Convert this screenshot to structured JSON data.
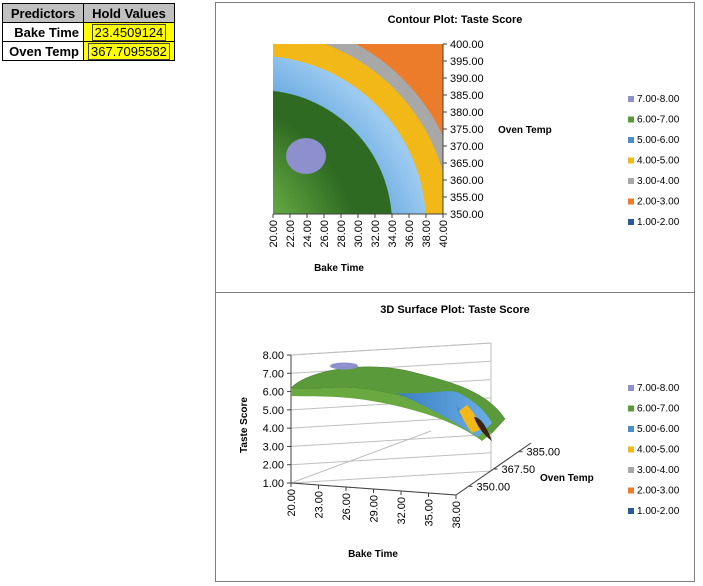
{
  "predictors_table": {
    "header": [
      "Predictors",
      "Hold Values"
    ],
    "rows": [
      {
        "label": "Bake Time",
        "value": "23.4509124"
      },
      {
        "label": "Oven Temp",
        "value": "367.7095582"
      }
    ]
  },
  "legend": {
    "entries": [
      {
        "label": "7.00-8.00",
        "color": "#8e8fcd"
      },
      {
        "label": "6.00-7.00",
        "color": "#5a9a3a"
      },
      {
        "label": "5.00-6.00",
        "color": "#4c8dc8"
      },
      {
        "label": "4.00-5.00",
        "color": "#f2b818"
      },
      {
        "label": "3.00-4.00",
        "color": "#a8a8a8"
      },
      {
        "label": "2.00-3.00",
        "color": "#ec7b2a"
      },
      {
        "label": "1.00-2.00",
        "color": "#2b5a9a"
      }
    ]
  },
  "chart_data": [
    {
      "type": "heatmap",
      "title": "Contour Plot: Taste Score",
      "xlabel": "Bake Time",
      "ylabel": "Oven Temp",
      "x_ticks": [
        "20.00",
        "22.00",
        "24.00",
        "26.00",
        "28.00",
        "30.00",
        "32.00",
        "34.00",
        "36.00",
        "38.00",
        "40.00"
      ],
      "y_ticks": [
        "350.00",
        "355.00",
        "360.00",
        "365.00",
        "370.00",
        "375.00",
        "380.00",
        "385.00",
        "390.00",
        "395.00",
        "400.00"
      ],
      "xlim": [
        20,
        40
      ],
      "ylim": [
        350,
        400
      ],
      "peak": {
        "x": 23.45,
        "y": 367.71,
        "z": 7.2
      },
      "legend_position": "right"
    },
    {
      "type": "surface",
      "title": "3D Surface Plot: Taste Score",
      "xlabel": "Bake Time",
      "ylabel": "Oven Temp",
      "zlabel": "Taste Score",
      "x_ticks": [
        "20.00",
        "23.00",
        "26.00",
        "29.00",
        "32.00",
        "35.00",
        "38.00"
      ],
      "y_ticks": [
        "350.00",
        "367.50",
        "385.00"
      ],
      "z_ticks": [
        "1.00",
        "2.00",
        "3.00",
        "4.00",
        "5.00",
        "6.00",
        "7.00",
        "8.00"
      ],
      "zlim": [
        1,
        8
      ],
      "legend_position": "right"
    }
  ]
}
